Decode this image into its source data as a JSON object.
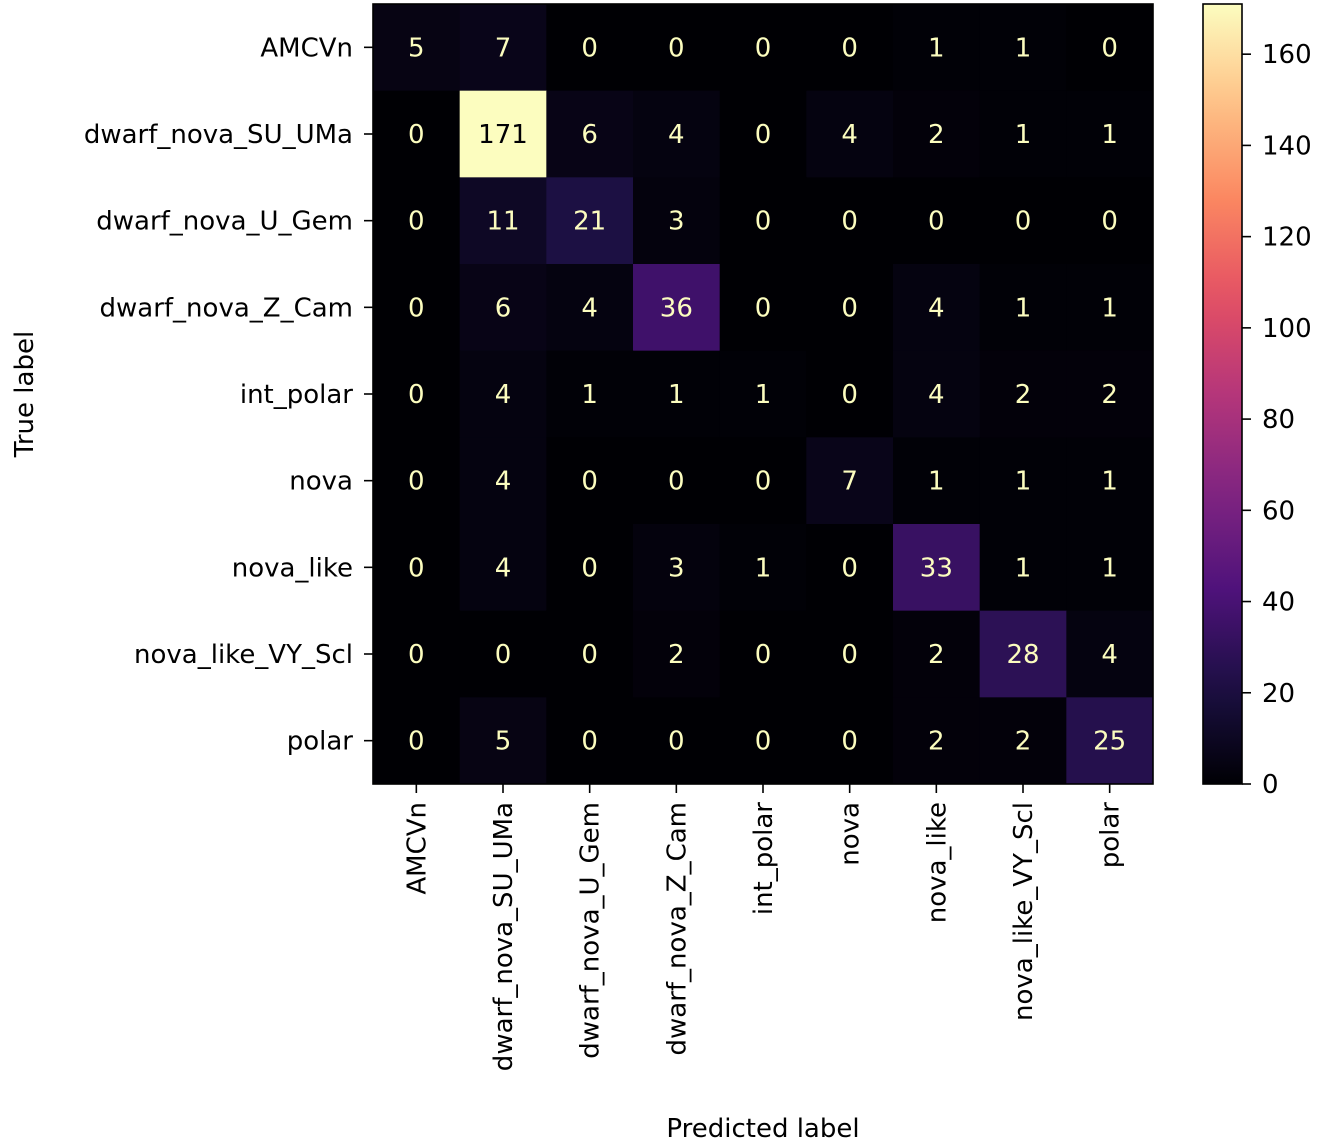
{
  "chart_data": {
    "type": "heatmap",
    "xlabel": "Predicted label",
    "ylabel": "True label",
    "x_categories": [
      "AMCVn",
      "dwarf_nova_SU_UMa",
      "dwarf_nova_U_Gem",
      "dwarf_nova_Z_Cam",
      "int_polar",
      "nova",
      "nova_like",
      "nova_like_VY_Scl",
      "polar"
    ],
    "y_categories": [
      "AMCVn",
      "dwarf_nova_SU_UMa",
      "dwarf_nova_U_Gem",
      "dwarf_nova_Z_Cam",
      "int_polar",
      "nova",
      "nova_like",
      "nova_like_VY_Scl",
      "polar"
    ],
    "values": [
      [
        5,
        7,
        0,
        0,
        0,
        0,
        1,
        1,
        0
      ],
      [
        0,
        171,
        6,
        4,
        0,
        4,
        2,
        1,
        1
      ],
      [
        0,
        11,
        21,
        3,
        0,
        0,
        0,
        0,
        0
      ],
      [
        0,
        6,
        4,
        36,
        0,
        0,
        4,
        1,
        1
      ],
      [
        0,
        4,
        1,
        1,
        1,
        0,
        4,
        2,
        2
      ],
      [
        0,
        4,
        0,
        0,
        0,
        7,
        1,
        1,
        1
      ],
      [
        0,
        4,
        0,
        3,
        1,
        0,
        33,
        1,
        1
      ],
      [
        0,
        0,
        0,
        2,
        0,
        0,
        2,
        28,
        4
      ],
      [
        0,
        5,
        0,
        0,
        0,
        0,
        2,
        2,
        25
      ]
    ],
    "colormap": "magma",
    "colorbar": {
      "range": [
        0,
        171
      ],
      "ticks": [
        0,
        20,
        40,
        60,
        80,
        100,
        120,
        140,
        160
      ]
    },
    "text_colors": {
      "on_dark": "#fcfdbf",
      "on_light": "#000004"
    }
  }
}
